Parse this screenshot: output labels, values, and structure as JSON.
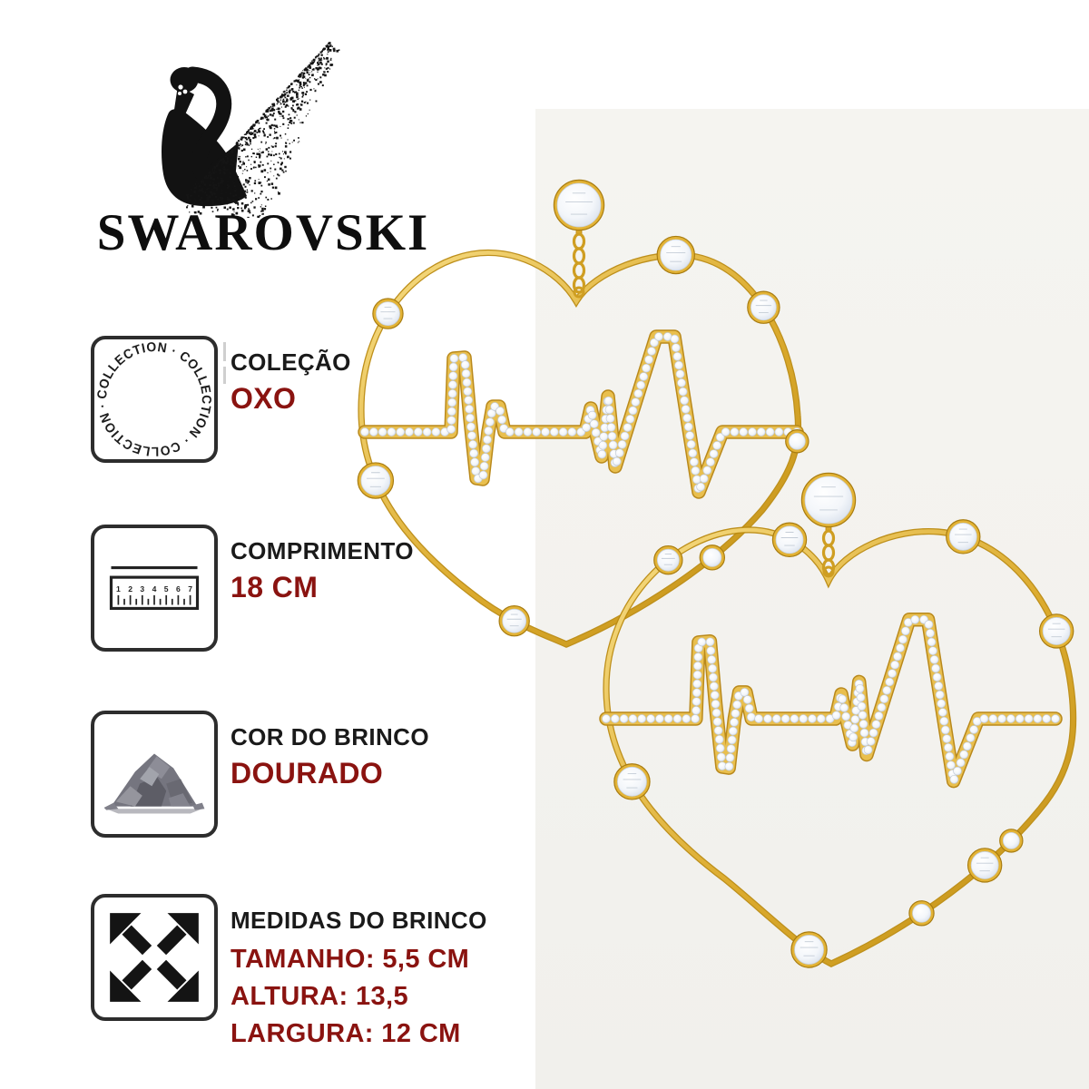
{
  "brand": {
    "wordmark": "SWAROVSKI",
    "logo_icon": "swan-icon"
  },
  "photo": {
    "background_color": "#f4f3ef",
    "label": "earrings-photo"
  },
  "colors": {
    "gold": "#d9a62a",
    "gold_dark": "#b8860b",
    "maroon": "#8a1310",
    "text_black": "#1a1a1a",
    "box_border": "#2d2d2d"
  },
  "specs": [
    {
      "icon": "collection-circular-text-icon",
      "icon_text": "COLLECTION · COLLECTION · COLLECTION ·",
      "label": "COLEÇÃO",
      "values": [
        "OXO"
      ]
    },
    {
      "icon": "ruler-icon",
      "ruler_numbers": [
        "1",
        "2",
        "3",
        "4",
        "5",
        "6",
        "7"
      ],
      "label": "COMPRIMENTO",
      "values": [
        "18 CM"
      ]
    },
    {
      "icon": "stone-pile-icon",
      "label": "COR DO BRINCO",
      "values": [
        "DOURADO"
      ]
    },
    {
      "icon": "expand-arrows-icon",
      "label": "MEDIDAS DO BRINCO",
      "values": [
        "TAMANHO: 5,5 CM",
        "ALTURA: 13,5",
        "LARGURA: 12 CM"
      ]
    }
  ]
}
